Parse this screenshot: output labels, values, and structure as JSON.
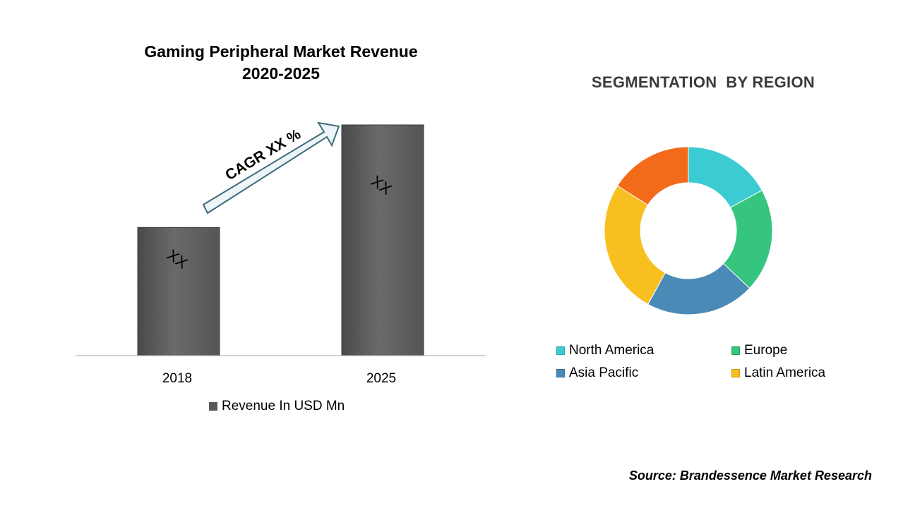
{
  "chart_data": [
    {
      "type": "bar",
      "title": [
        "Gaming Peripheral Market Revenue",
        "2020-2025"
      ],
      "categories": [
        "2018",
        "2025"
      ],
      "series": [
        {
          "name": "Revenue In USD Mn",
          "values": [
            1.0,
            1.8
          ],
          "data_labels": [
            "XX",
            "XX"
          ]
        }
      ],
      "annotation": "CAGR XX %",
      "colors": {
        "bar": "#636363",
        "arrow_fill": "#eef5f7",
        "arrow_stroke": "#3d6b7b"
      },
      "ylim": [
        0,
        1.8
      ],
      "grid": false,
      "legend_position": "bottom"
    },
    {
      "type": "pie",
      "title": "SEGMENTATION  BY REGION",
      "variant": "donut",
      "slices": [
        {
          "label": "North America",
          "value": 17,
          "color": "#3ccbd3"
        },
        {
          "label": "Europe",
          "value": 20,
          "color": "#35c57e"
        },
        {
          "label": "Asia Pacific",
          "value": 21,
          "color": "#4a8ab7"
        },
        {
          "label": "Latin America",
          "value": 26,
          "color": "#f7c020"
        },
        {
          "label": "",
          "value": 16,
          "color": "#f26a1a"
        }
      ],
      "legend_position": "bottom"
    }
  ],
  "source": "Source: Brandessence Market Research"
}
